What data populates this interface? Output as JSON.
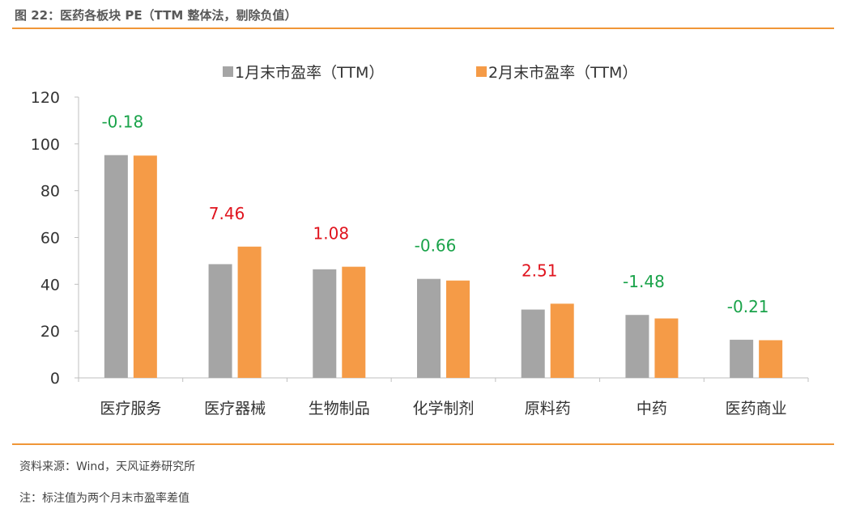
{
  "header": {
    "title": "图 22：医药各板块 PE（TTM 整体法，剔除负值）"
  },
  "footer": {
    "source": "资料来源：Wind，天风证券研究所",
    "note": "注：标注值为两个月末市盈率差值"
  },
  "chart_data": {
    "type": "bar",
    "title": "",
    "xlabel": "",
    "ylabel": "",
    "ylim": [
      0,
      120
    ],
    "yticks": [
      0,
      20,
      40,
      60,
      80,
      100,
      120
    ],
    "grid": false,
    "legend": "top-center",
    "categories": [
      "医疗服务",
      "医疗器械",
      "生物制品",
      "化学制剂",
      "原料药",
      "中药",
      "医药商业"
    ],
    "series": [
      {
        "name": "1月末市盈率（TTM）",
        "color": "#a5a5a5",
        "values": [
          95.2,
          48.6,
          46.4,
          42.3,
          29.2,
          26.9,
          16.3
        ]
      },
      {
        "name": "2月末市盈率（TTM）",
        "color": "#f59b47",
        "values": [
          95.0,
          56.1,
          47.5,
          41.6,
          31.7,
          25.4,
          16.1
        ]
      }
    ],
    "annotations": [
      {
        "text": "-0.18",
        "value": -0.18,
        "color": "#1aa34a"
      },
      {
        "text": "7.46",
        "value": 7.46,
        "color": "#e0141e"
      },
      {
        "text": "1.08",
        "value": 1.08,
        "color": "#e0141e"
      },
      {
        "text": "-0.66",
        "value": -0.66,
        "color": "#1aa34a"
      },
      {
        "text": "2.51",
        "value": 2.51,
        "color": "#e0141e"
      },
      {
        "text": "-1.48",
        "value": -1.48,
        "color": "#1aa34a"
      },
      {
        "text": "-0.21",
        "value": -0.21,
        "color": "#1aa34a"
      }
    ]
  }
}
